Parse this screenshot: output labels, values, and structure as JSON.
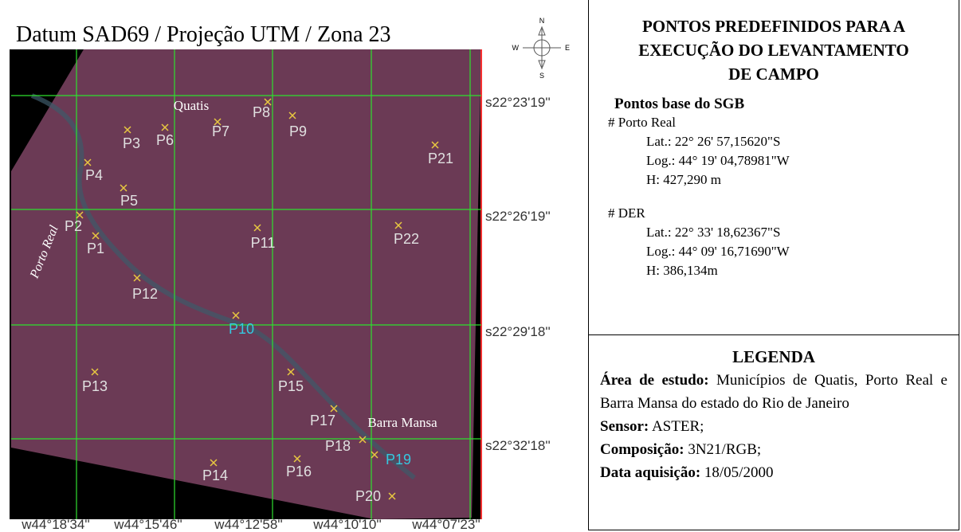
{
  "map": {
    "title": "Datum SAD69 / Projeção UTM / Zona 23",
    "compass": {
      "n": "N",
      "s": "S",
      "w": "W",
      "e": "E"
    },
    "lat_labels": [
      "s22°23'19''",
      "s22°26'19''",
      "s22°29'18''",
      "s22°32'18''"
    ],
    "lon_labels": [
      "w44°18'34''",
      "w44°15'46''",
      "w44°12'58''",
      "w44°10'10''",
      "w44°07'23''"
    ],
    "places": [
      "Quatis",
      "Porto Real",
      "Barra Mansa"
    ],
    "points": [
      {
        "label": "P1",
        "color": "#e0e0e0"
      },
      {
        "label": "P2",
        "color": "#e0e0e0"
      },
      {
        "label": "P3",
        "color": "#e0e0e0"
      },
      {
        "label": "P4",
        "color": "#e0e0e0"
      },
      {
        "label": "P5",
        "color": "#e0e0e0"
      },
      {
        "label": "P6",
        "color": "#e0e0e0"
      },
      {
        "label": "P7",
        "color": "#e0e0e0"
      },
      {
        "label": "P8",
        "color": "#e0e0e0"
      },
      {
        "label": "P9",
        "color": "#e0e0e0"
      },
      {
        "label": "P10",
        "color": "#35c8e0"
      },
      {
        "label": "P11",
        "color": "#e0e0e0"
      },
      {
        "label": "P12",
        "color": "#e0e0e0"
      },
      {
        "label": "P13",
        "color": "#e0e0e0"
      },
      {
        "label": "P14",
        "color": "#e0e0e0"
      },
      {
        "label": "P15",
        "color": "#e0e0e0"
      },
      {
        "label": "P16",
        "color": "#e0e0e0"
      },
      {
        "label": "P17",
        "color": "#e0e0e0"
      },
      {
        "label": "P18",
        "color": "#e0e0e0"
      },
      {
        "label": "P19",
        "color": "#35c8e0"
      },
      {
        "label": "P20",
        "color": "#e0e0e0"
      },
      {
        "label": "P21",
        "color": "#e0e0e0"
      },
      {
        "label": "P22",
        "color": "#e0e0e0"
      }
    ]
  },
  "panel": {
    "heading": [
      "PONTOS PREDEFINIDOS PARA A",
      "EXECUÇÃO DO LEVANTAMENTO",
      "DE CAMPO"
    ],
    "subheading": "Pontos base do SGB",
    "bases": [
      {
        "name": "# Porto Real",
        "lat_key": "Lat.:",
        "lat": "22° 26' 57,15620\"S",
        "lon_key": "Log.:",
        "lon": "44° 19' 04,78981\"W",
        "h_key": "H:",
        "h": "427,290 m"
      },
      {
        "name": "# DER",
        "lat_key": "Lat.:",
        "lat": "22° 33' 18,62367\"S",
        "lon_key": "Log.:",
        "lon": "44° 09' 16,71690\"W",
        "h_key": "H:",
        "h": "386,134m"
      }
    ],
    "legend_title": "LEGENDA",
    "legend": [
      {
        "key": "Área de estudo:",
        "text": "Municípios de Quatis, Porto Real e Barra Mansa do estado do Rio de Janeiro"
      },
      {
        "key": "Sensor:",
        "text": "ASTER;"
      },
      {
        "key": "Composição:",
        "text": "3N21/RGB;"
      },
      {
        "key": "Data aquisição:",
        "text": "18/05/2000"
      }
    ]
  }
}
